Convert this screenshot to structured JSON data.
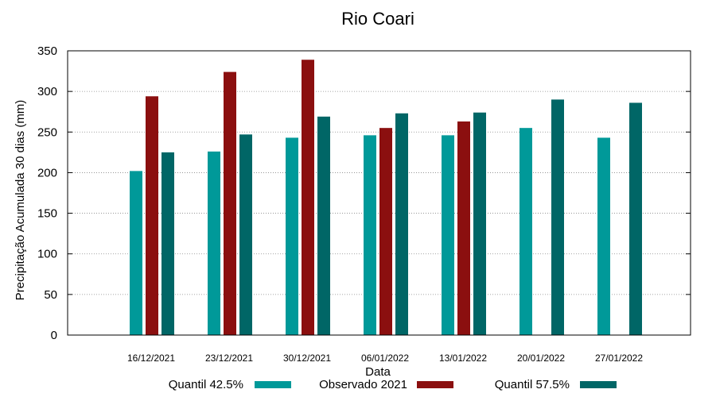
{
  "chart_data": {
    "type": "bar",
    "title": "Rio Coari",
    "xlabel": "Data",
    "ylabel": "Precipitação Acumulada 30 dias (mm)",
    "ylim": [
      0,
      350
    ],
    "yticks": [
      0,
      50,
      100,
      150,
      200,
      250,
      300,
      350
    ],
    "grid": true,
    "legend_position": "bottom",
    "categories": [
      "16/12/2021",
      "23/12/2021",
      "30/12/2021",
      "06/01/2022",
      "13/01/2022",
      "20/01/2022",
      "27/01/2022"
    ],
    "series": [
      {
        "name": "Quantil 42.5%",
        "color": "#009999",
        "values": [
          202,
          226,
          243,
          246,
          246,
          255,
          243
        ]
      },
      {
        "name": "Observado 2021",
        "color": "#8b0f0f",
        "values": [
          294,
          324,
          339,
          255,
          263,
          null,
          null
        ]
      },
      {
        "name": "Quantil 57.5%",
        "color": "#006666",
        "values": [
          225,
          247,
          269,
          273,
          274,
          290,
          286
        ]
      }
    ]
  }
}
